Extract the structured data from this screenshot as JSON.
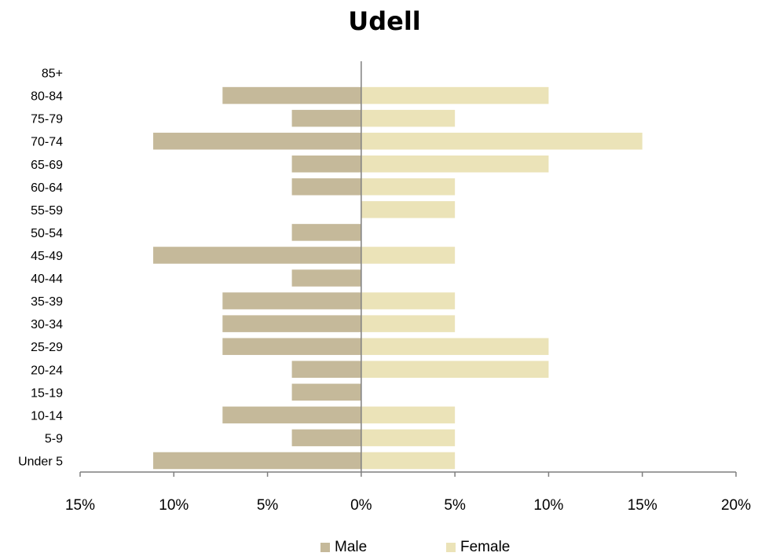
{
  "chart_data": {
    "type": "bar",
    "orientation": "horizontal",
    "title": "Udell",
    "categories": [
      "85+",
      "80-84",
      "75-79",
      "70-74",
      "65-69",
      "60-64",
      "55-59",
      "50-54",
      "45-49",
      "40-44",
      "35-39",
      "30-34",
      "25-29",
      "20-24",
      "15-19",
      "10-14",
      "5-9",
      "Under 5"
    ],
    "series": [
      {
        "name": "Male",
        "color": "#c5b99a",
        "values": [
          0,
          7.4,
          3.7,
          11.1,
          3.7,
          3.7,
          0,
          3.7,
          11.1,
          3.7,
          7.4,
          7.4,
          7.4,
          3.7,
          3.7,
          7.4,
          3.7,
          11.1
        ]
      },
      {
        "name": "Female",
        "color": "#ebe3b8",
        "values": [
          0,
          10,
          5,
          15,
          10,
          5,
          5,
          0,
          5,
          0,
          5,
          5,
          10,
          10,
          0,
          5,
          5,
          5
        ]
      }
    ],
    "xlim": [
      -15,
      20
    ],
    "x_ticks": [
      -15,
      -10,
      -5,
      0,
      5,
      10,
      15,
      20
    ],
    "x_tick_labels": [
      "15%",
      "10%",
      "5%",
      "0%",
      "5%",
      "10%",
      "15%",
      "20%"
    ],
    "xlabel": "",
    "ylabel": "",
    "grid": false,
    "legend_position": "bottom"
  }
}
